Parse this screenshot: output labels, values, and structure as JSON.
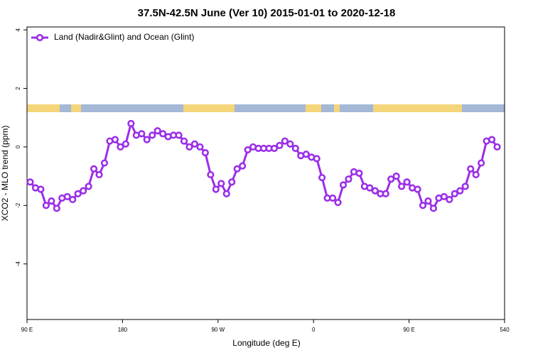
{
  "chart_data": {
    "type": "line",
    "title": "37.5N-42.5N June (Ver 10)   2015-01-01 to 2020-12-18",
    "x_label": "Longitude (deg E)",
    "y_label": "XCO2 - MLO trend (ppm)",
    "legend": "top-left",
    "x": [
      93,
      98,
      103,
      108,
      113,
      118,
      123,
      128,
      133,
      138,
      143,
      148,
      153,
      158,
      163,
      168,
      173,
      178,
      183,
      188,
      193,
      198,
      203,
      208,
      213,
      218,
      223,
      228,
      233,
      238,
      243,
      248,
      253,
      258,
      263,
      268,
      273,
      278,
      283,
      288,
      293,
      298,
      303,
      308,
      313,
      318,
      323,
      328,
      333,
      338,
      343,
      348,
      353,
      358,
      363,
      368,
      373,
      378,
      383,
      388,
      393,
      398,
      403,
      408,
      413,
      418,
      423,
      428,
      433,
      438,
      443,
      448,
      453,
      458,
      463,
      468,
      473,
      478,
      483,
      488,
      493,
      498,
      503,
      508,
      513,
      518,
      523,
      528,
      533
    ],
    "series": [
      {
        "name": "Land (Nadir&Glint) and Ocean (Glint)",
        "color": "#9b2ee8",
        "values": [
          -1.2,
          -1.4,
          -1.45,
          -2.0,
          -1.85,
          -2.1,
          -1.75,
          -1.7,
          -1.8,
          -1.6,
          -1.5,
          -1.35,
          -0.75,
          -0.95,
          -0.55,
          0.2,
          0.25,
          0,
          0.1,
          0.8,
          0.4,
          0.45,
          0.25,
          0.4,
          0.55,
          0.45,
          0.35,
          0.4,
          0.4,
          0.2,
          0,
          0.1,
          0,
          -0.2,
          -0.95,
          -1.45,
          -1.25,
          -1.6,
          -1.2,
          -0.75,
          -0.65,
          -0.1,
          0,
          -0.05,
          -0.05,
          -0.05,
          -0.05,
          0.05,
          0.2,
          0.1,
          -0.05,
          -0.3,
          -0.25,
          -0.35,
          -0.4,
          -1.05,
          -1.75,
          -1.75,
          -1.9,
          -1.3,
          -1.1,
          -0.85,
          -0.9,
          -1.35,
          -1.4,
          -1.5,
          -1.6,
          -1.6,
          -1.1,
          -1.0,
          -1.35,
          -1.2,
          -1.4,
          -1.45,
          -2.0,
          -1.85,
          -2.1,
          -1.75,
          -1.7,
          -1.8,
          -1.6,
          -1.5,
          -1.35,
          -0.75,
          -0.95,
          -0.55,
          0.2,
          0.25,
          0
        ]
      }
    ],
    "xlim": [
      90,
      540
    ],
    "xticks": [
      {
        "value": 90,
        "label": "90 E"
      },
      180,
      {
        "value": 270,
        "label": "90 W"
      },
      {
        "value": 360,
        "label": "0"
      },
      {
        "value": 450,
        "label": "90 E"
      },
      540
    ],
    "ylim": [
      -5.9,
      4.1
    ],
    "yticks": [
      -4,
      -2,
      0,
      2,
      4
    ]
  }
}
